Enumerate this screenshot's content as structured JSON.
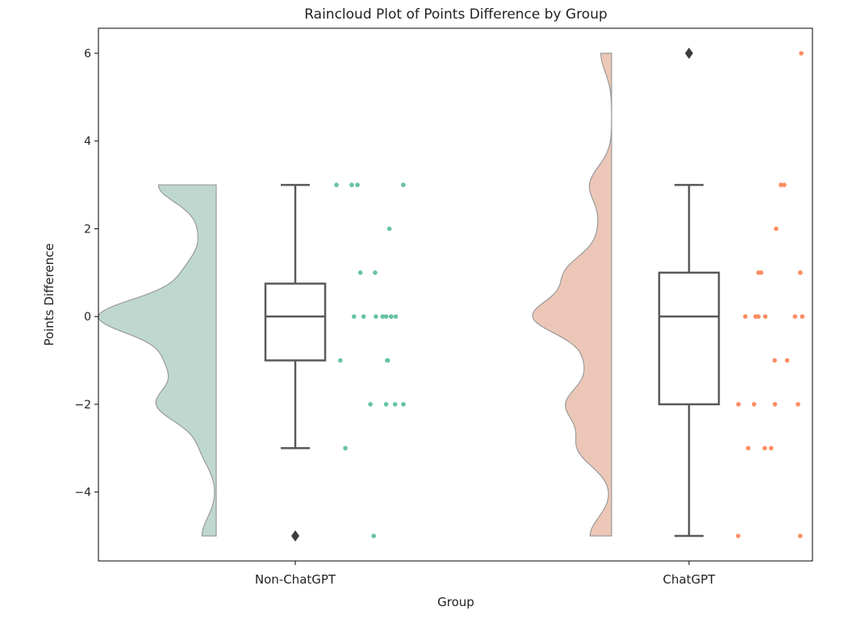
{
  "chart_data": {
    "type": "raincloud",
    "title": "Raincloud Plot of Points Difference by Group",
    "xlabel": "Group",
    "ylabel": "Points Difference",
    "ylim": [
      -5.57,
      6.57
    ],
    "yticks": [
      -4,
      -2,
      0,
      2,
      4,
      6
    ],
    "ytick_labels": [
      "−4",
      "−2",
      "0",
      "2",
      "4",
      "6"
    ],
    "grid": false,
    "categories": [
      "Non-ChatGPT",
      "ChatGPT"
    ],
    "groups": [
      {
        "name": "Non-ChatGPT",
        "color": "#66c2a5",
        "violin_color": "#bfd8cf",
        "values": [
          3,
          3,
          3,
          3,
          2,
          1,
          1,
          0,
          0,
          0,
          0,
          0,
          0,
          0,
          0,
          -1,
          -1,
          -1,
          -2,
          -2,
          -2,
          -2,
          -3,
          -5
        ],
        "box": {
          "whisker_low": -3,
          "q1": -1,
          "median": 0,
          "q3": 0.75,
          "whisker_high": 3,
          "outliers": [
            -5
          ]
        }
      },
      {
        "name": "ChatGPT",
        "color": "#fc8d62",
        "violin_color": "#ecc7b7",
        "values": [
          6,
          3,
          3,
          2,
          1,
          1,
          1,
          1,
          0,
          0,
          0,
          0,
          0,
          0,
          0,
          -1,
          -1,
          -2,
          -2,
          -2,
          -2,
          -3,
          -3,
          -3,
          -5,
          -5
        ],
        "box": {
          "whisker_low": -5,
          "q1": -2,
          "median": 0,
          "q3": 1,
          "whisker_high": 3,
          "outliers": [
            6
          ]
        }
      }
    ]
  }
}
